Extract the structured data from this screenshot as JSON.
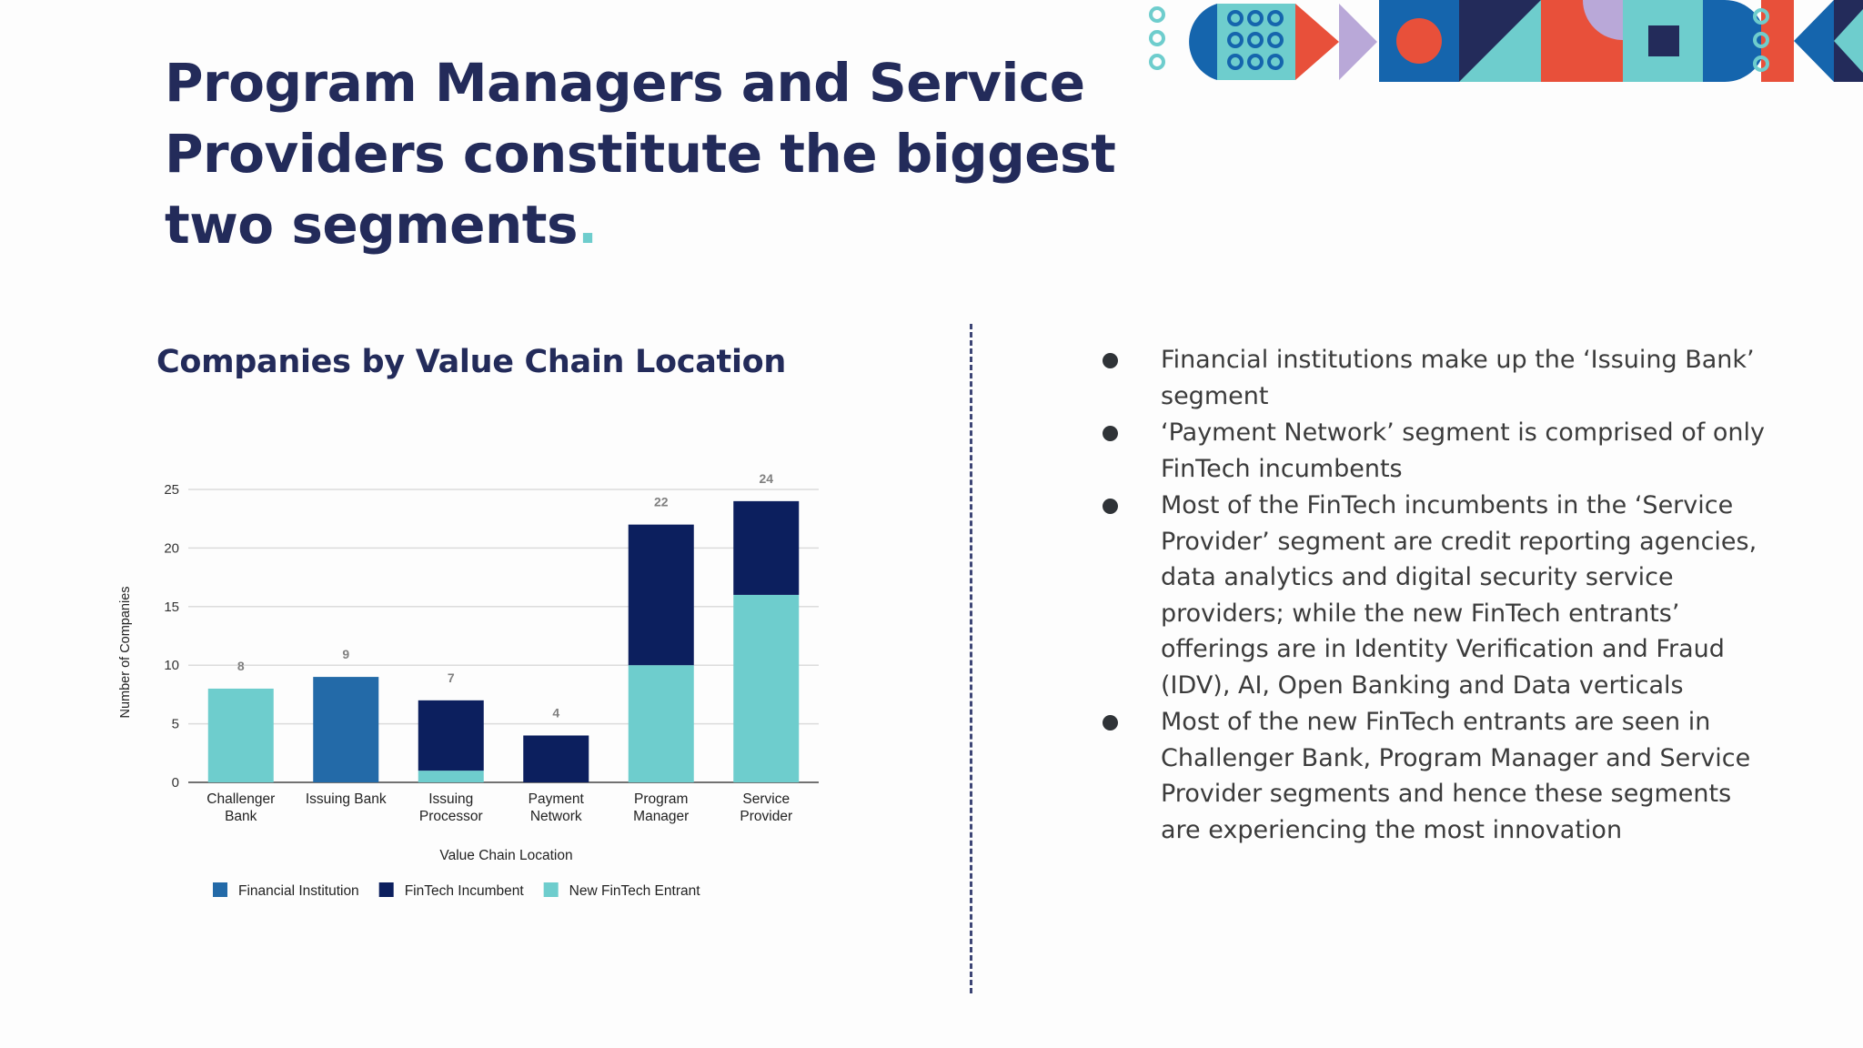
{
  "slide": {
    "title": "Program Managers and Service Providers constitute the biggest two segments",
    "title_dot": "."
  },
  "chart_heading": "Companies by Value Chain Location",
  "chart_data": {
    "type": "bar",
    "stacked": true,
    "title": "",
    "xlabel": "Value Chain Location",
    "ylabel": "Number of Companies",
    "ylim": [
      0,
      25
    ],
    "yticks": [
      0,
      5,
      10,
      15,
      20,
      25
    ],
    "grid": true,
    "legend_position": "bottom",
    "categories": [
      [
        "Challenger",
        "Bank"
      ],
      [
        "Issuing Bank"
      ],
      [
        "Issuing",
        "Processor"
      ],
      [
        "Payment",
        "Network"
      ],
      [
        "Program",
        "Manager"
      ],
      [
        "Service",
        "Provider"
      ]
    ],
    "series": [
      {
        "name": "New FinTech Entrant",
        "color": "#6ecdcd",
        "values": [
          8,
          0,
          1,
          0,
          10,
          16
        ]
      },
      {
        "name": "Financial Institution",
        "color": "#236aa8",
        "values": [
          0,
          9,
          0,
          0,
          0,
          0
        ]
      },
      {
        "name": "FinTech Incumbent",
        "color": "#0c1f5e",
        "values": [
          0,
          0,
          6,
          4,
          12,
          8
        ]
      }
    ],
    "totals": [
      8,
      9,
      7,
      4,
      22,
      24
    ],
    "legend_order": [
      "Financial Institution",
      "FinTech Incumbent",
      "New FinTech Entrant"
    ]
  },
  "bullets": [
    "Financial institutions make up the ‘Issuing Bank’ segment",
    "‘Payment Network’ segment is comprised of only FinTech incumbents",
    "Most of the FinTech incumbents in the ‘Service Provider’ segment are credit reporting agencies, data analytics and digital security service providers; while the new FinTech entrants’ offerings are in Identity Verification and Fraud (IDV), AI, Open Banking and Data verticals",
    "Most of the new FinTech entrants are seen in Challenger Bank, Program Manager and Service Provider segments and hence these segments are experiencing the most innovation"
  ],
  "colors": {
    "navy": "#232b5a",
    "teal": "#6ecdcd",
    "blue": "#236aa8",
    "dark_navy": "#0c1f5e",
    "red": "#e8503a",
    "lavender": "#b9a8d8",
    "deco_blue": "#1565ad"
  },
  "decoration": {
    "name": "geometric-pattern-banner"
  }
}
